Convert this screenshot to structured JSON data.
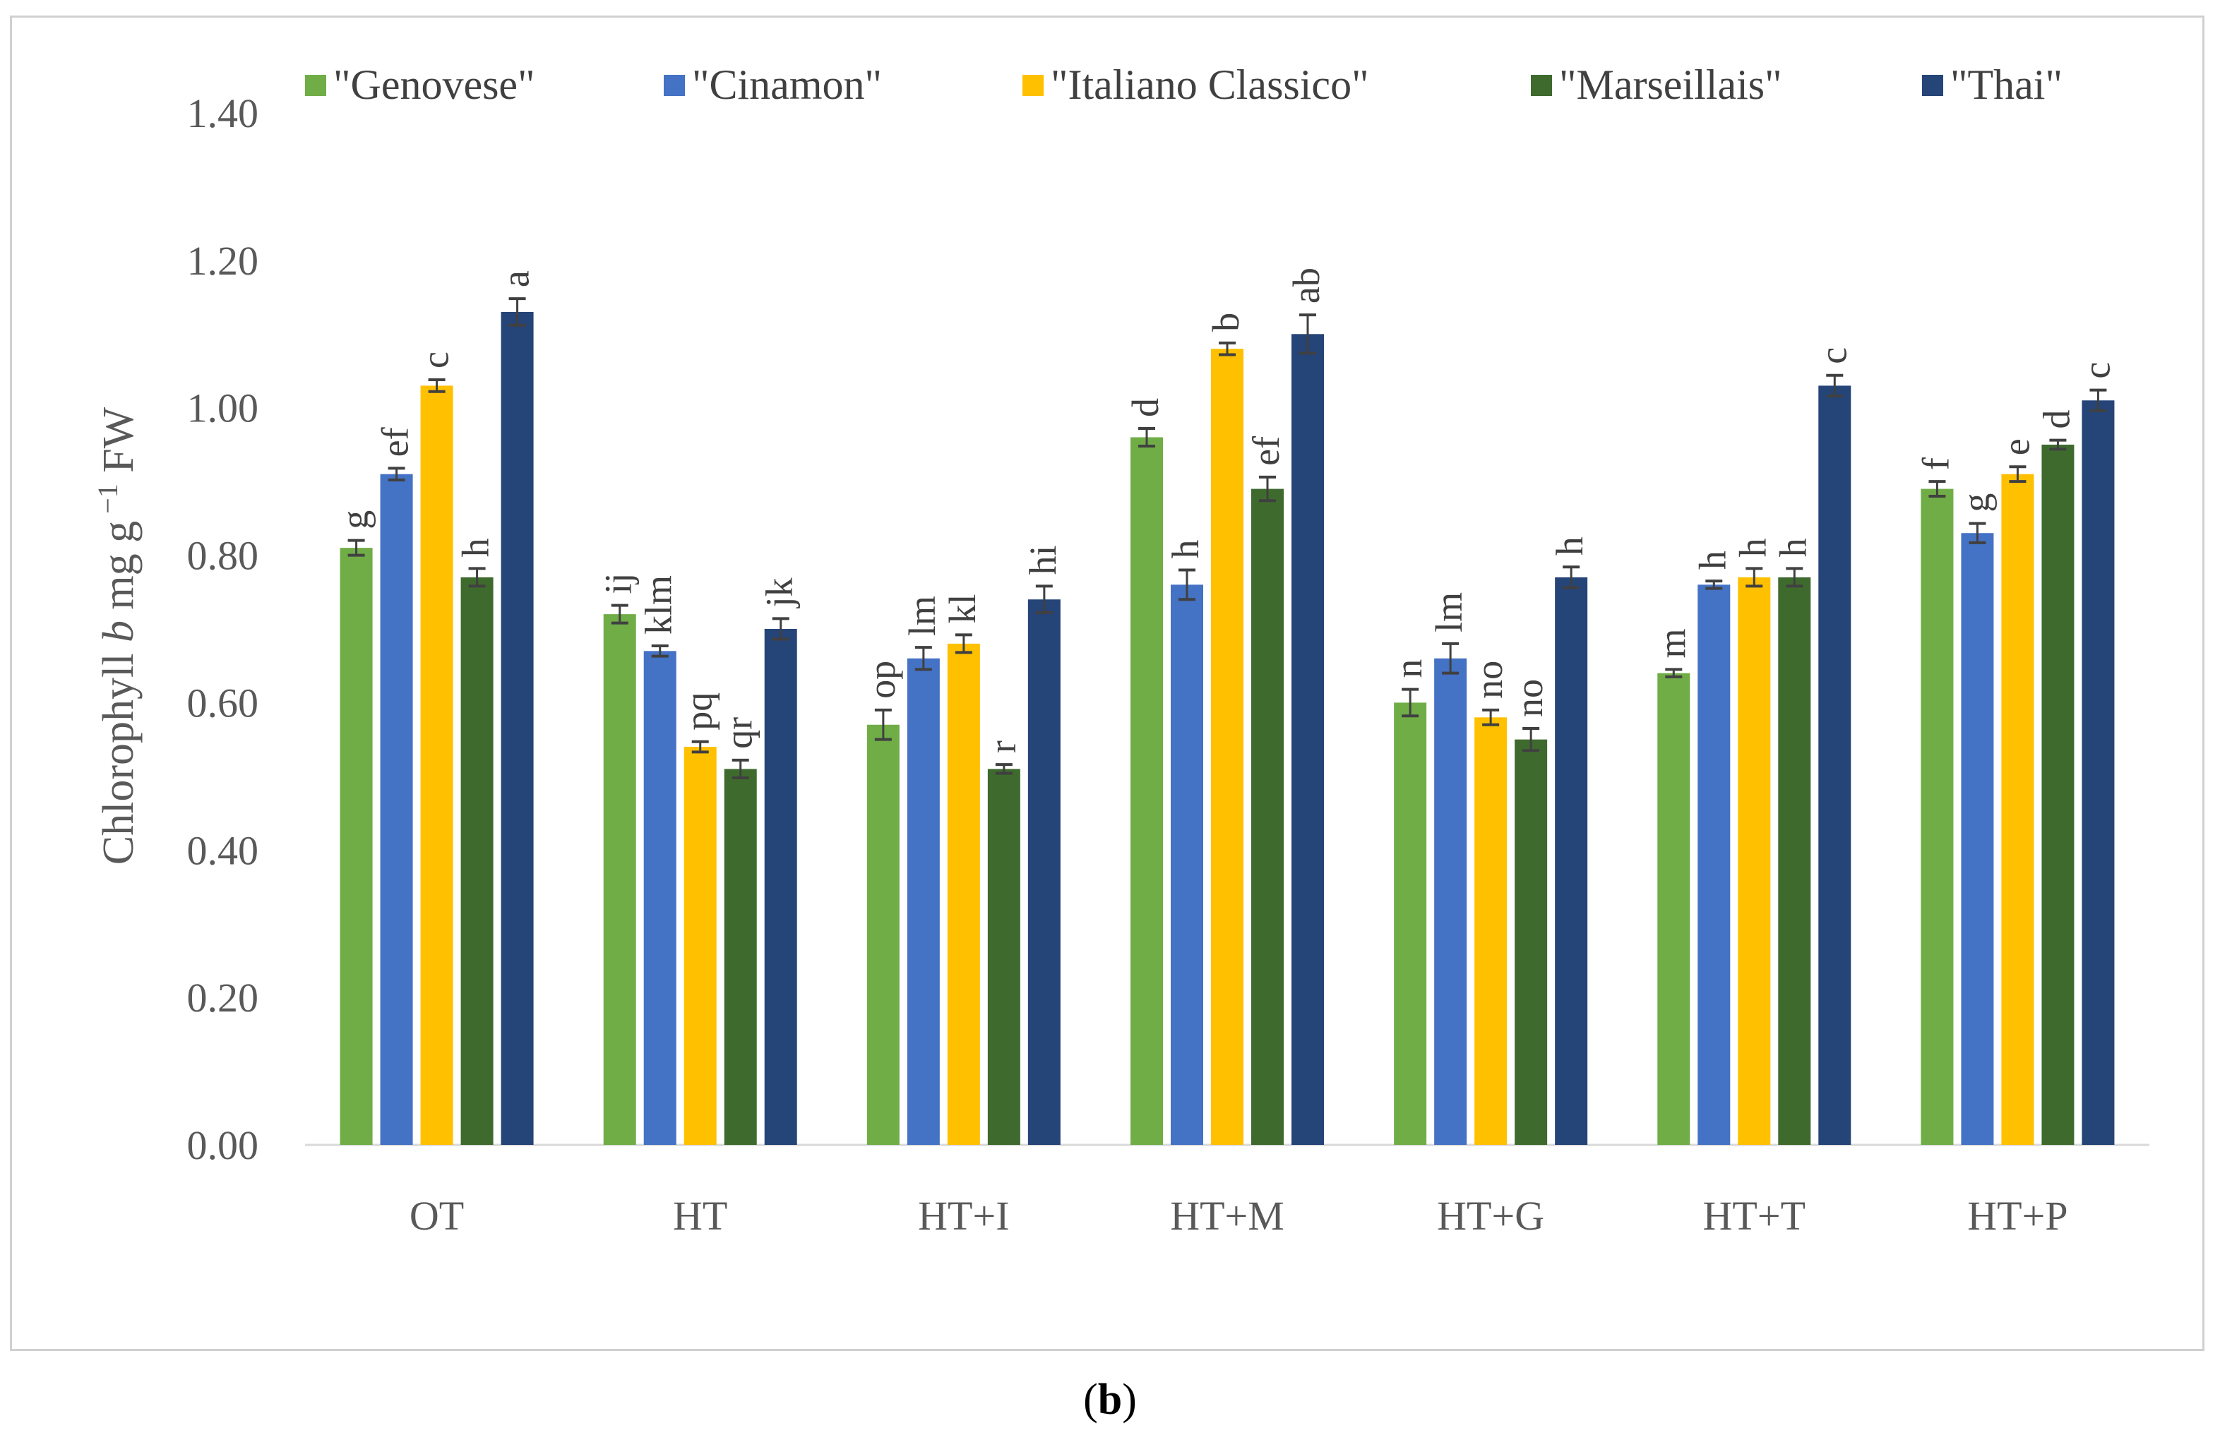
{
  "chart_data": {
    "type": "bar",
    "title": "",
    "xlabel": "",
    "ylabel": "Chlorophyll b mg g⁻¹ FW",
    "ylabel_parts": {
      "pre": "Chlorophyll ",
      "italic": "b",
      "unit": " mg g",
      "sup": "−1",
      "post": " FW"
    },
    "ylim": [
      0,
      1.4
    ],
    "yticks": [
      "0.00",
      "0.20",
      "0.40",
      "0.60",
      "0.80",
      "1.00",
      "1.20",
      "1.40"
    ],
    "grid": false,
    "legend_position": "top",
    "categories": [
      "OT",
      "HT",
      "HT+I",
      "HT+M",
      "HT+G",
      "HT+T",
      "HT+P"
    ],
    "series": [
      {
        "name": "\"Genovese\"",
        "color": "#70ad47",
        "values": [
          0.81,
          0.72,
          0.57,
          0.96,
          0.6,
          0.64,
          0.89
        ],
        "errors": [
          0.01,
          0.012,
          0.02,
          0.012,
          0.018,
          0.005,
          0.01
        ],
        "letters": [
          "g",
          "ij",
          "op",
          "d",
          "n",
          "m",
          "f"
        ]
      },
      {
        "name": "\"Cinamon\"",
        "color": "#4472c4",
        "values": [
          0.91,
          0.67,
          0.66,
          0.76,
          0.66,
          0.76,
          0.83
        ],
        "errors": [
          0.008,
          0.007,
          0.015,
          0.02,
          0.02,
          0.005,
          0.013
        ],
        "letters": [
          "ef",
          "klm",
          "lm",
          "h",
          "lm",
          "h",
          "g"
        ]
      },
      {
        "name": "\"Italiano Classico\"",
        "color": "#ffc000",
        "values": [
          1.03,
          0.54,
          0.68,
          1.08,
          0.58,
          0.77,
          0.91
        ],
        "errors": [
          0.008,
          0.007,
          0.012,
          0.008,
          0.01,
          0.012,
          0.01
        ],
        "letters": [
          "c",
          "pq",
          "kl",
          "b",
          "no",
          "h",
          "e"
        ]
      },
      {
        "name": "\"Marseillais\"",
        "color": "#3e6b2d",
        "values": [
          0.77,
          0.51,
          0.51,
          0.89,
          0.55,
          0.77,
          0.95
        ],
        "errors": [
          0.012,
          0.012,
          0.006,
          0.016,
          0.015,
          0.012,
          0.006
        ],
        "letters": [
          "h",
          "qr",
          "r",
          "ef",
          "no",
          "h",
          "d"
        ]
      },
      {
        "name": "\"Thai\"",
        "color": "#254478",
        "values": [
          1.13,
          0.7,
          0.74,
          1.1,
          0.77,
          1.03,
          1.01
        ],
        "errors": [
          0.018,
          0.014,
          0.018,
          0.026,
          0.014,
          0.014,
          0.014
        ],
        "letters": [
          "a",
          "jk",
          "hi",
          "ab",
          "h",
          "c",
          "c"
        ]
      }
    ]
  },
  "caption": {
    "open": "(",
    "letter": "b",
    "close": ")"
  }
}
